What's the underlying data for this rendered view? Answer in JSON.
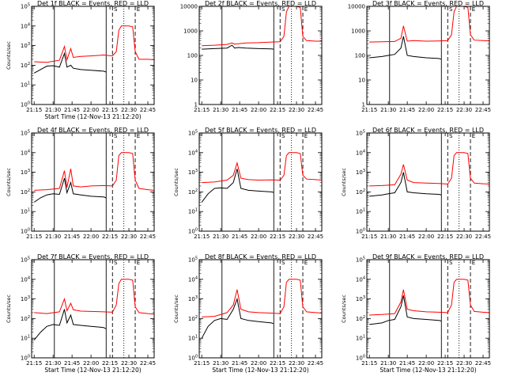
{
  "chart_data": [
    {
      "type": "line",
      "title": "Det 1f BLACK = Events, RED = LLD",
      "xlabel": "Start Time (12-Nov-13 21:12:20)",
      "ylabel": "Counts/sec",
      "x_ticks": [
        "21:15",
        "21:30",
        "21:45",
        "22:00",
        "22:15",
        "22:30",
        "22:45"
      ],
      "y_scale": "log",
      "ylim": [
        1,
        100000
      ],
      "y_ticks": [
        "10^0",
        "10^1",
        "10^2",
        "10^3",
        "10^4",
        "10^5"
      ],
      "markers": {
        "solid": [
          "21:31",
          "22:12"
        ],
        "dashed": [
          "22:17",
          "22:35"
        ],
        "dotted": [
          "22:26"
        ]
      },
      "top_labels": [
        "S",
        "E"
      ],
      "series": [
        {
          "color": "#ff0000",
          "x": [
            "21:15",
            "21:25",
            "21:35",
            "21:39",
            "21:41",
            "21:44",
            "21:46",
            "21:52",
            "22:00",
            "22:10",
            "22:17",
            "22:20",
            "22:22",
            "22:24",
            "22:30",
            "22:33",
            "22:35",
            "22:38",
            "22:45",
            "22:50"
          ],
          "y": [
            150,
            140,
            180,
            900,
            190,
            700,
            250,
            280,
            300,
            330,
            300,
            500,
            6000,
            10000,
            10000,
            9000,
            500,
            200,
            200,
            190
          ]
        },
        {
          "color": "#000000",
          "x": [
            "21:15",
            "21:20",
            "21:25",
            "21:30",
            "21:35",
            "21:39",
            "21:41",
            "21:44",
            "21:46",
            "21:52",
            "22:00",
            "22:10",
            "22:12"
          ],
          "y": [
            40,
            60,
            90,
            95,
            80,
            400,
            80,
            100,
            70,
            60,
            55,
            50,
            45
          ]
        }
      ]
    },
    {
      "type": "line",
      "title": "Det 2f BLACK = Events, RED = LLD",
      "xlabel": "",
      "ylabel": "",
      "x_ticks": [
        "21:15",
        "21:30",
        "21:45",
        "22:00",
        "22:15",
        "22:30",
        "22:45"
      ],
      "y_scale": "log",
      "ylim": [
        1,
        10000
      ],
      "y_ticks": [
        "1",
        "10",
        "100",
        "1000",
        "10000"
      ],
      "markers": {
        "solid": [
          "21:31",
          "22:12"
        ],
        "dashed": [
          "22:17",
          "22:35"
        ],
        "dotted": [
          "22:26"
        ]
      },
      "top_labels": [
        "S",
        "E"
      ],
      "series": [
        {
          "color": "#ff0000",
          "x": [
            "21:15",
            "21:25",
            "21:35",
            "21:39",
            "21:41",
            "21:44",
            "21:50",
            "22:00",
            "22:10",
            "22:17",
            "22:20",
            "22:22",
            "22:24",
            "22:30",
            "22:33",
            "22:35",
            "22:38",
            "22:45",
            "22:50"
          ],
          "y": [
            250,
            260,
            280,
            320,
            290,
            300,
            320,
            330,
            350,
            360,
            600,
            6000,
            10000,
            10000,
            9000,
            600,
            400,
            380,
            380
          ]
        },
        {
          "color": "#000000",
          "x": [
            "21:15",
            "21:25",
            "21:35",
            "21:39",
            "21:41",
            "21:44",
            "21:50",
            "22:00",
            "22:10",
            "22:12"
          ],
          "y": [
            180,
            190,
            200,
            260,
            200,
            210,
            200,
            190,
            185,
            180
          ]
        }
      ]
    },
    {
      "type": "line",
      "title": "Det 3f BLACK = Events, RED = LLD",
      "xlabel": "",
      "ylabel": "",
      "x_ticks": [
        "21:15",
        "21:30",
        "21:45",
        "22:00",
        "22:15",
        "22:30",
        "22:45"
      ],
      "y_scale": "log",
      "ylim": [
        1,
        10000
      ],
      "y_ticks": [
        "1",
        "10",
        "100",
        "1000",
        "10000"
      ],
      "markers": {
        "solid": [
          "21:31",
          "22:12"
        ],
        "dashed": [
          "22:17",
          "22:35"
        ],
        "dotted": [
          "22:26"
        ]
      },
      "top_labels": [
        "S",
        "E"
      ],
      "series": [
        {
          "color": "#ff0000",
          "x": [
            "21:15",
            "21:25",
            "21:35",
            "21:40",
            "21:42",
            "21:45",
            "21:50",
            "22:00",
            "22:10",
            "22:17",
            "22:20",
            "22:22",
            "22:24",
            "22:30",
            "22:33",
            "22:35",
            "22:38",
            "22:45",
            "22:50"
          ],
          "y": [
            350,
            360,
            370,
            500,
            1600,
            380,
            400,
            380,
            390,
            400,
            700,
            6000,
            10000,
            10000,
            9000,
            700,
            420,
            400,
            390
          ]
        },
        {
          "color": "#000000",
          "x": [
            "21:15",
            "21:25",
            "21:30",
            "21:35",
            "21:40",
            "21:42",
            "21:45",
            "21:50",
            "22:00",
            "22:10",
            "22:12"
          ],
          "y": [
            80,
            90,
            100,
            110,
            200,
            600,
            100,
            90,
            80,
            75,
            70
          ]
        }
      ]
    },
    {
      "type": "line",
      "title": "Det 4f BLACK = Events, RED = LLD",
      "xlabel": "",
      "ylabel": "Counts/sec",
      "x_ticks": [
        "21:15",
        "21:30",
        "21:45",
        "22:00",
        "22:15",
        "22:30",
        "22:45"
      ],
      "y_scale": "log",
      "ylim": [
        1,
        100000
      ],
      "y_ticks": [
        "10^0",
        "10^1",
        "10^2",
        "10^3",
        "10^4",
        "10^5"
      ],
      "markers": {
        "solid": [
          "21:31",
          "22:12"
        ],
        "dashed": [
          "22:17",
          "22:35"
        ],
        "dotted": [
          "22:26"
        ]
      },
      "top_labels": [
        "S",
        "E"
      ],
      "series": [
        {
          "color": "#ff0000",
          "x": [
            "21:15",
            "21:25",
            "21:35",
            "21:39",
            "21:41",
            "21:44",
            "21:46",
            "21:52",
            "22:00",
            "22:10",
            "22:17",
            "22:20",
            "22:22",
            "22:24",
            "22:30",
            "22:33",
            "22:35",
            "22:38",
            "22:45",
            "22:50"
          ],
          "y": [
            120,
            130,
            150,
            1200,
            170,
            1500,
            200,
            180,
            200,
            210,
            200,
            400,
            7000,
            10000,
            10000,
            9000,
            400,
            150,
            130,
            120
          ]
        },
        {
          "color": "#000000",
          "x": [
            "21:15",
            "21:20",
            "21:25",
            "21:30",
            "21:35",
            "21:39",
            "21:41",
            "21:44",
            "21:46",
            "21:52",
            "22:00",
            "22:10",
            "22:12"
          ],
          "y": [
            30,
            50,
            70,
            80,
            75,
            500,
            90,
            300,
            80,
            70,
            60,
            55,
            50
          ]
        }
      ]
    },
    {
      "type": "line",
      "title": "Det 5f BLACK = Events, RED = LLD",
      "xlabel": "",
      "ylabel": "Counts/sec",
      "x_ticks": [
        "21:15",
        "21:30",
        "21:45",
        "22:00",
        "22:15",
        "22:30",
        "22:45"
      ],
      "y_scale": "log",
      "ylim": [
        1,
        100000
      ],
      "y_ticks": [
        "10^0",
        "10^1",
        "10^2",
        "10^3",
        "10^4",
        "10^5"
      ],
      "markers": {
        "solid": [
          "21:31",
          "22:12"
        ],
        "dashed": [
          "22:17",
          "22:35"
        ],
        "dotted": [
          "22:26"
        ]
      },
      "top_labels": [
        "S",
        "E"
      ],
      "series": [
        {
          "color": "#ff0000",
          "x": [
            "21:15",
            "21:25",
            "21:35",
            "21:40",
            "21:43",
            "21:46",
            "21:52",
            "22:00",
            "22:10",
            "22:17",
            "22:20",
            "22:22",
            "22:24",
            "22:30",
            "22:33",
            "22:35",
            "22:38",
            "22:45",
            "22:50"
          ],
          "y": [
            300,
            320,
            400,
            700,
            3000,
            500,
            420,
            400,
            410,
            400,
            700,
            7000,
            10000,
            10000,
            9000,
            700,
            450,
            420,
            400
          ]
        },
        {
          "color": "#000000",
          "x": [
            "21:15",
            "21:20",
            "21:25",
            "21:30",
            "21:35",
            "21:40",
            "21:43",
            "21:46",
            "21:52",
            "22:00",
            "22:10",
            "22:12"
          ],
          "y": [
            30,
            80,
            150,
            160,
            150,
            300,
            1500,
            150,
            120,
            110,
            100,
            95
          ]
        }
      ]
    },
    {
      "type": "line",
      "title": "Det 6f BLACK = Events, RED = LLD",
      "xlabel": "",
      "ylabel": "Counts/sec",
      "x_ticks": [
        "21:15",
        "21:30",
        "21:45",
        "22:00",
        "22:15",
        "22:30",
        "22:45"
      ],
      "y_scale": "log",
      "ylim": [
        1,
        100000
      ],
      "y_ticks": [
        "10^0",
        "10^1",
        "10^2",
        "10^3",
        "10^4",
        "10^5"
      ],
      "markers": {
        "solid": [
          "21:31",
          "22:12"
        ],
        "dashed": [
          "22:17",
          "22:35"
        ],
        "dotted": [
          "22:26"
        ]
      },
      "top_labels": [
        "S",
        "E"
      ],
      "series": [
        {
          "color": "#ff0000",
          "x": [
            "21:15",
            "21:25",
            "21:35",
            "21:40",
            "21:42",
            "21:45",
            "21:50",
            "22:00",
            "22:10",
            "22:17",
            "22:20",
            "22:22",
            "22:24",
            "22:30",
            "22:33",
            "22:35",
            "22:38",
            "22:45",
            "22:50"
          ],
          "y": [
            200,
            210,
            230,
            800,
            2500,
            400,
            300,
            280,
            270,
            250,
            500,
            7000,
            10000,
            10000,
            9000,
            500,
            280,
            260,
            250
          ]
        },
        {
          "color": "#000000",
          "x": [
            "21:15",
            "21:25",
            "21:30",
            "21:35",
            "21:40",
            "21:42",
            "21:45",
            "21:50",
            "22:00",
            "22:10",
            "22:12"
          ],
          "y": [
            60,
            70,
            80,
            90,
            300,
            1000,
            100,
            90,
            80,
            75,
            70
          ]
        }
      ]
    },
    {
      "type": "line",
      "title": "Det 7f BLACK = Events, RED = LLD",
      "xlabel": "Start Time (12-Nov-13 21:12:20)",
      "ylabel": "Counts/sec",
      "x_ticks": [
        "21:15",
        "21:30",
        "21:45",
        "22:00",
        "22:15",
        "22:30",
        "22:45"
      ],
      "y_scale": "log",
      "ylim": [
        1,
        100000
      ],
      "y_ticks": [
        "10^0",
        "10^1",
        "10^2",
        "10^3",
        "10^4",
        "10^5"
      ],
      "markers": {
        "solid": [
          "21:31",
          "22:12"
        ],
        "dashed": [
          "22:17",
          "22:35"
        ],
        "dotted": [
          "22:26"
        ]
      },
      "top_labels": [
        "S",
        "E"
      ],
      "series": [
        {
          "color": "#ff0000",
          "x": [
            "21:15",
            "21:25",
            "21:35",
            "21:39",
            "21:41",
            "21:44",
            "21:46",
            "21:52",
            "22:00",
            "22:10",
            "22:17",
            "22:20",
            "22:22",
            "22:24",
            "22:30",
            "22:33",
            "22:35",
            "22:38",
            "22:45",
            "22:50"
          ],
          "y": [
            200,
            180,
            220,
            1000,
            250,
            600,
            280,
            240,
            230,
            220,
            210,
            500,
            6000,
            10000,
            10000,
            9000,
            400,
            200,
            180,
            170
          ]
        },
        {
          "color": "#000000",
          "x": [
            "21:15",
            "21:20",
            "21:25",
            "21:30",
            "21:35",
            "21:39",
            "21:41",
            "21:44",
            "21:46",
            "21:52",
            "22:00",
            "22:10",
            "22:12"
          ],
          "y": [
            8,
            20,
            40,
            50,
            45,
            300,
            60,
            150,
            50,
            45,
            40,
            35,
            30
          ]
        }
      ]
    },
    {
      "type": "line",
      "title": "Det 8f BLACK = Events, RED = LLD",
      "xlabel": "Start Time (12-Nov-13 21:12:20)",
      "ylabel": "Counts/sec",
      "x_ticks": [
        "21:15",
        "21:30",
        "21:45",
        "22:00",
        "22:15",
        "22:30",
        "22:45"
      ],
      "y_scale": "log",
      "ylim": [
        1,
        100000
      ],
      "y_ticks": [
        "10^0",
        "10^1",
        "10^2",
        "10^3",
        "10^4",
        "10^5"
      ],
      "markers": {
        "solid": [
          "21:31",
          "22:12"
        ],
        "dashed": [
          "22:17",
          "22:35"
        ],
        "dotted": [
          "22:26"
        ]
      },
      "top_labels": [
        "S",
        "E"
      ],
      "series": [
        {
          "color": "#ff0000",
          "x": [
            "21:15",
            "21:25",
            "21:35",
            "21:40",
            "21:43",
            "21:46",
            "21:52",
            "22:00",
            "22:10",
            "22:17",
            "22:20",
            "22:22",
            "22:24",
            "22:30",
            "22:33",
            "22:35",
            "22:38",
            "22:45",
            "22:50"
          ],
          "y": [
            120,
            130,
            200,
            500,
            3000,
            300,
            220,
            200,
            190,
            180,
            400,
            7000,
            10000,
            10000,
            9000,
            400,
            220,
            200,
            190
          ]
        },
        {
          "color": "#000000",
          "x": [
            "21:15",
            "21:20",
            "21:25",
            "21:30",
            "21:35",
            "21:40",
            "21:43",
            "21:46",
            "21:52",
            "22:00",
            "22:10",
            "22:12"
          ],
          "y": [
            10,
            40,
            80,
            100,
            90,
            300,
            1000,
            100,
            80,
            70,
            60,
            55
          ]
        }
      ]
    },
    {
      "type": "line",
      "title": "Det 9f BLACK = Events, RED = LLD",
      "xlabel": "Start Time (12-Nov-13 21:12:20)",
      "ylabel": "Counts/sec",
      "x_ticks": [
        "21:15",
        "21:30",
        "21:45",
        "22:00",
        "22:15",
        "22:30",
        "22:45"
      ],
      "y_scale": "log",
      "ylim": [
        1,
        100000
      ],
      "y_ticks": [
        "10^0",
        "10^1",
        "10^2",
        "10^3",
        "10^4",
        "10^5"
      ],
      "markers": {
        "solid": [
          "21:31",
          "22:12"
        ],
        "dashed": [
          "22:17",
          "22:35"
        ],
        "dotted": [
          "22:26"
        ]
      },
      "top_labels": [
        "S",
        "E"
      ],
      "series": [
        {
          "color": "#ff0000",
          "x": [
            "21:15",
            "21:25",
            "21:35",
            "21:40",
            "21:42",
            "21:45",
            "21:50",
            "22:00",
            "22:10",
            "22:17",
            "22:20",
            "22:22",
            "22:24",
            "22:30",
            "22:33",
            "22:35",
            "22:38",
            "22:45",
            "22:50"
          ],
          "y": [
            150,
            160,
            180,
            700,
            3000,
            300,
            250,
            220,
            210,
            200,
            500,
            7000,
            10000,
            10000,
            9000,
            500,
            230,
            210,
            200
          ]
        },
        {
          "color": "#000000",
          "x": [
            "21:15",
            "21:25",
            "21:30",
            "21:35",
            "21:40",
            "21:42",
            "21:45",
            "21:50",
            "22:00",
            "22:10",
            "22:12"
          ],
          "y": [
            50,
            60,
            80,
            90,
            400,
            1500,
            120,
            100,
            90,
            80,
            75
          ]
        }
      ]
    }
  ]
}
